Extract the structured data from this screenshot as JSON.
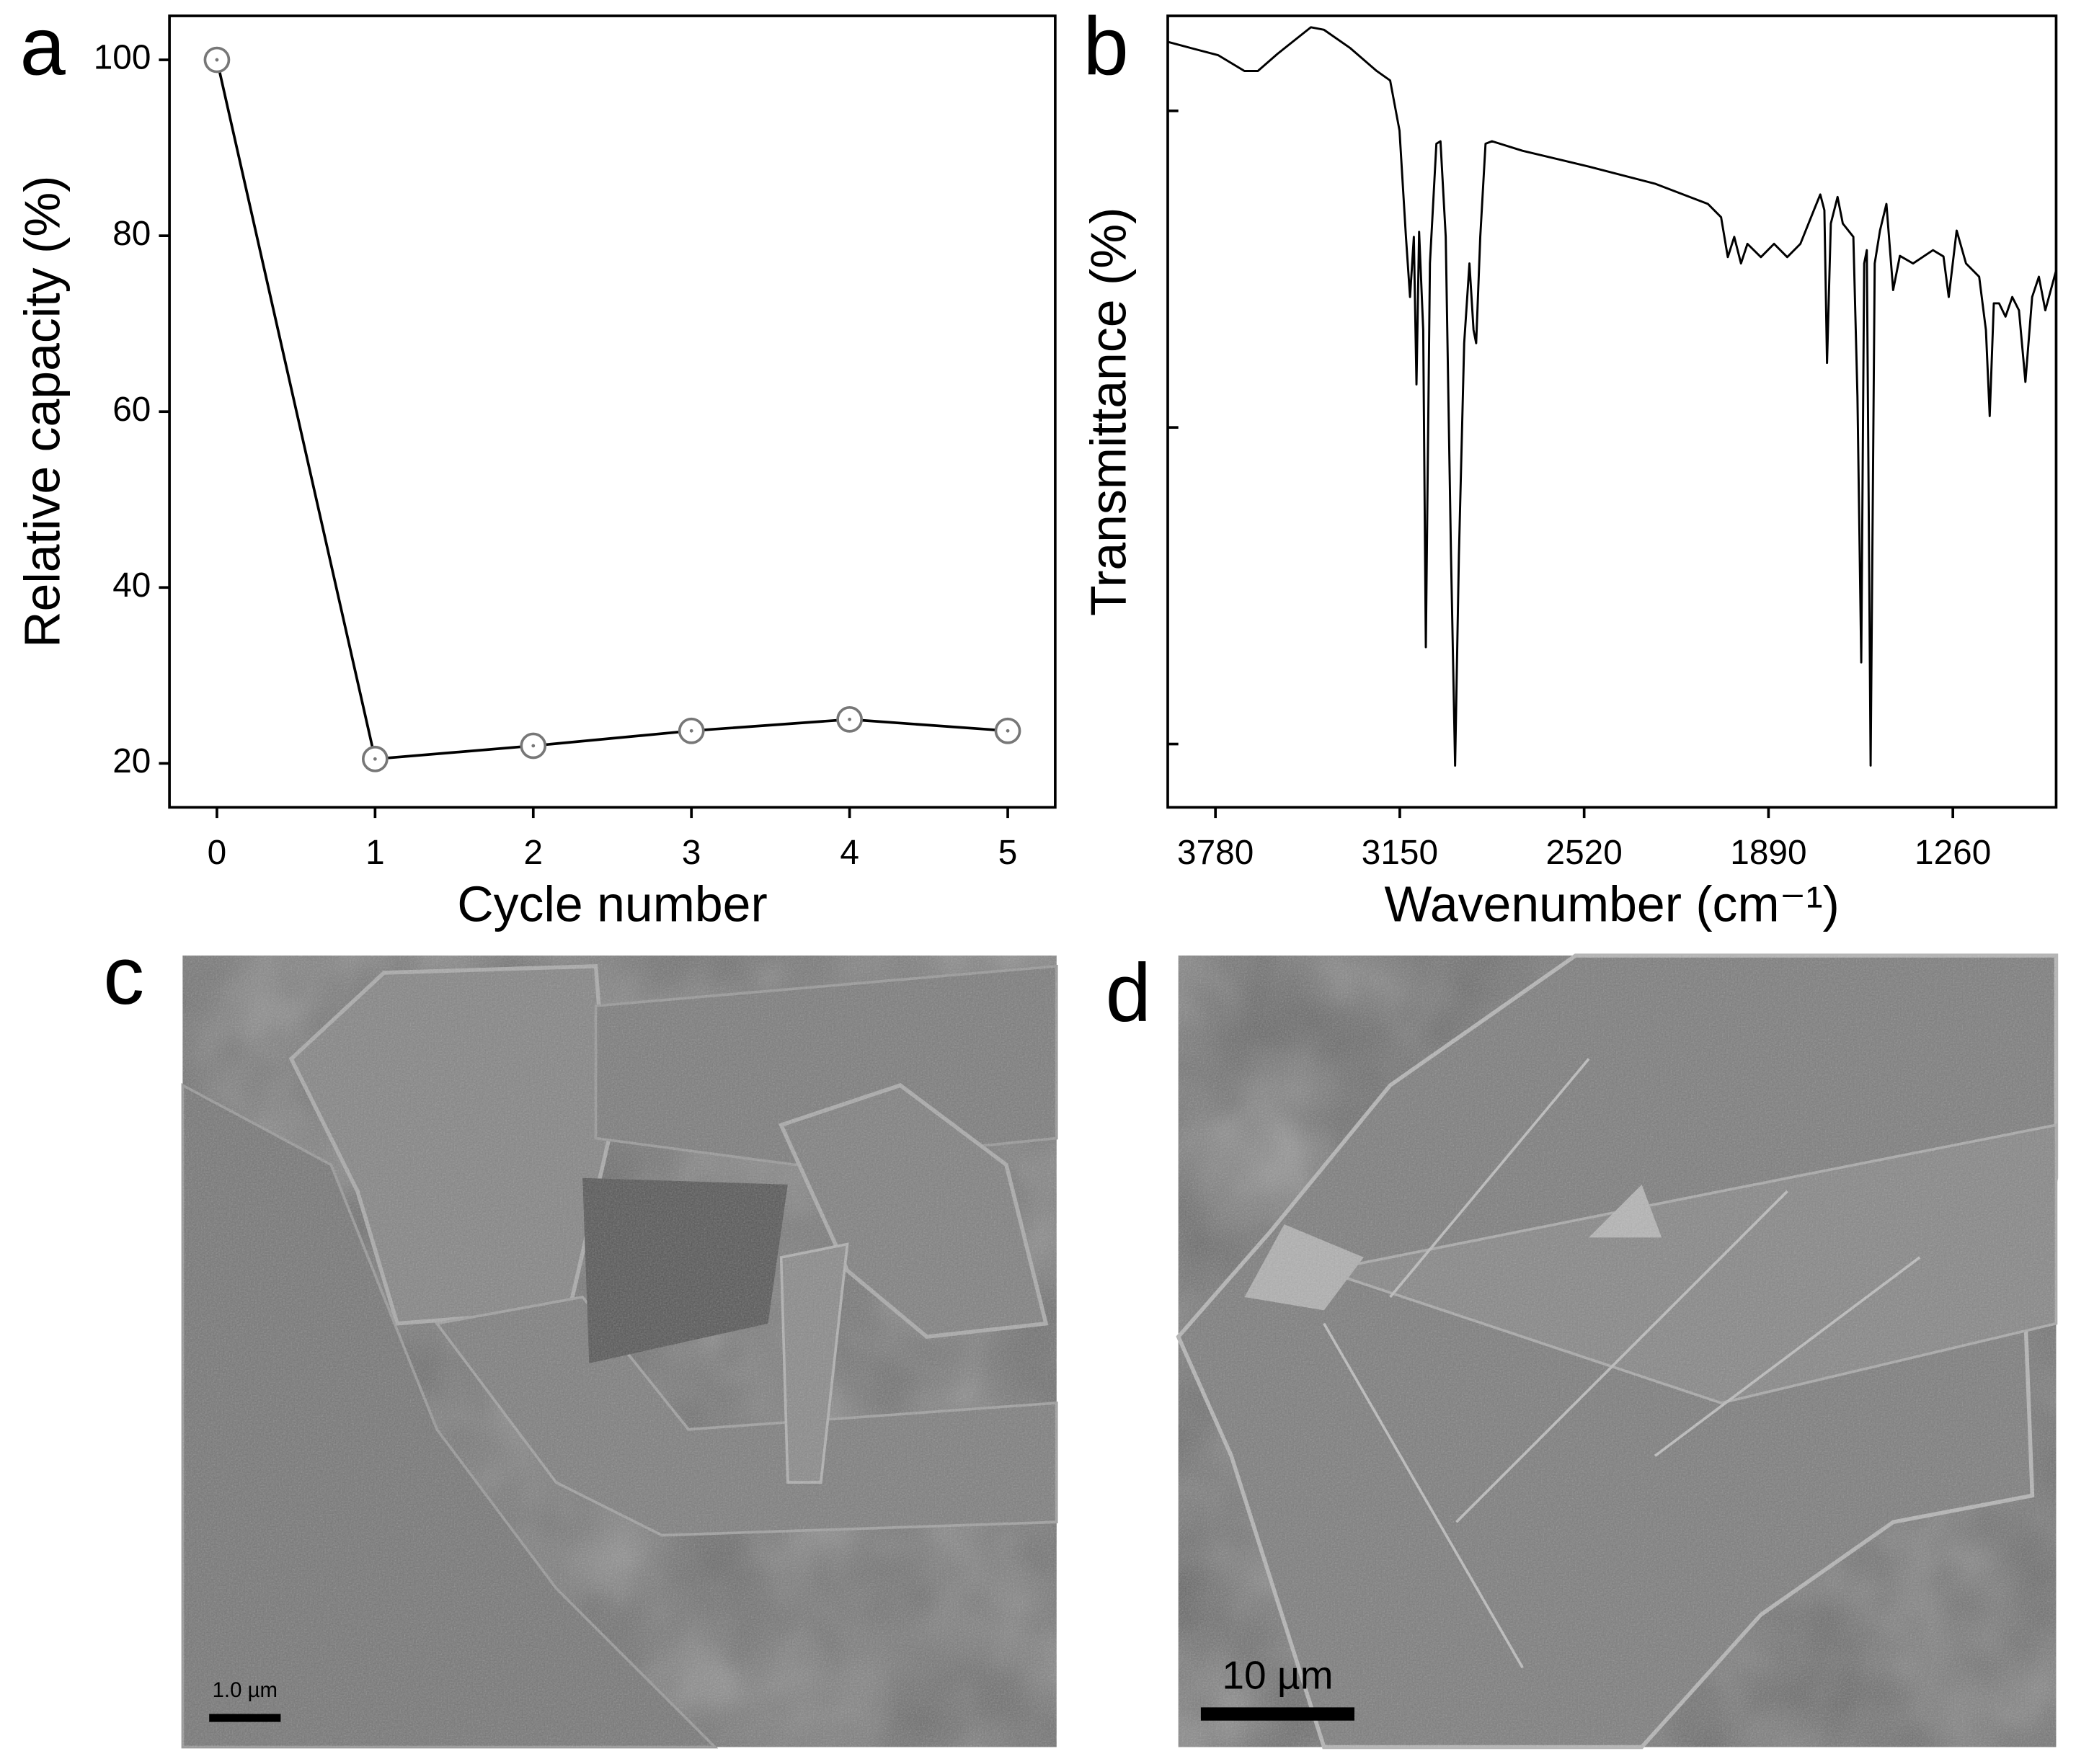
{
  "chart_data": [
    {
      "type": "line",
      "panel_label": "a",
      "ylabel": "Relative capacity (%)",
      "xlabel": "Cycle number",
      "x": [
        0,
        1,
        2,
        3,
        4,
        5
      ],
      "values": [
        100,
        20.5,
        22,
        23.7,
        25,
        23.7
      ],
      "color": "#000000",
      "marker_color": "#777777",
      "markers": true,
      "xlim": [
        -0.3,
        5.3
      ],
      "xticks": [
        0,
        1,
        2,
        3,
        4,
        5
      ],
      "ylim": [
        15,
        105
      ],
      "yticks": [
        20,
        40,
        60,
        80,
        100
      ]
    },
    {
      "type": "line",
      "panel_label": "b",
      "ylabel": "Transmittance (%)",
      "xlabel": "Wavenumber (cm⁻¹)",
      "x": [
        3943,
        3862,
        3771,
        3681,
        3635,
        3568,
        3454,
        3409,
        3319,
        3229,
        3183,
        3151,
        3129,
        3115,
        3102,
        3093,
        3084,
        3070,
        3061,
        3047,
        3025,
        3011,
        2993,
        2975,
        2961,
        2948,
        2930,
        2912,
        2898,
        2889,
        2875,
        2857,
        2835,
        2731,
        2504,
        2278,
        2097,
        2052,
        2029,
        2007,
        1984,
        1962,
        1916,
        1871,
        1826,
        1781,
        1735,
        1713,
        1699,
        1690,
        1677,
        1654,
        1636,
        1600,
        1586,
        1573,
        1563,
        1554,
        1541,
        1527,
        1509,
        1487,
        1464,
        1441,
        1396,
        1328,
        1292,
        1274,
        1247,
        1215,
        1170,
        1147,
        1134,
        1120,
        1102,
        1080,
        1057,
        1034,
        1012,
        989,
        966,
        944,
        907
      ],
      "values": [
        110.9,
        109.9,
        108.8,
        106.3,
        106.3,
        109.0,
        113.2,
        112.8,
        109.9,
        106.3,
        104.8,
        96.9,
        80.1,
        70.6,
        80.1,
        56.8,
        80.9,
        65.4,
        15.3,
        75.9,
        94.8,
        95.2,
        80.1,
        29.8,
        -3.4,
        29.8,
        63.3,
        75.9,
        65.4,
        63.3,
        80.1,
        94.8,
        95.2,
        93.7,
        91.2,
        88.5,
        85.3,
        83.2,
        76.9,
        80.1,
        75.9,
        79.0,
        76.9,
        79.0,
        76.9,
        79.0,
        84.3,
        86.8,
        84.3,
        60.2,
        82.2,
        86.4,
        82.2,
        80.1,
        54.9,
        12.9,
        75.9,
        78.0,
        -3.4,
        75.9,
        81.1,
        85.3,
        71.7,
        77.1,
        75.9,
        78.0,
        77.0,
        70.6,
        81.1,
        75.9,
        73.8,
        65.4,
        51.8,
        69.6,
        69.6,
        67.5,
        70.6,
        68.5,
        57.2,
        70.6,
        73.8,
        68.5,
        74.8
      ],
      "color": "#000000",
      "markers": false,
      "xlim": [
        3943,
        907
      ],
      "xticks": [
        3780,
        3150,
        2520,
        1890,
        1260
      ],
      "ylim": [
        -10,
        115
      ],
      "yticks": [
        0,
        50,
        100
      ]
    }
  ],
  "panels": [
    {
      "label": "c",
      "scale_bar": "1.0 µm"
    },
    {
      "label": "d",
      "scale_bar": "10 µm"
    }
  ]
}
